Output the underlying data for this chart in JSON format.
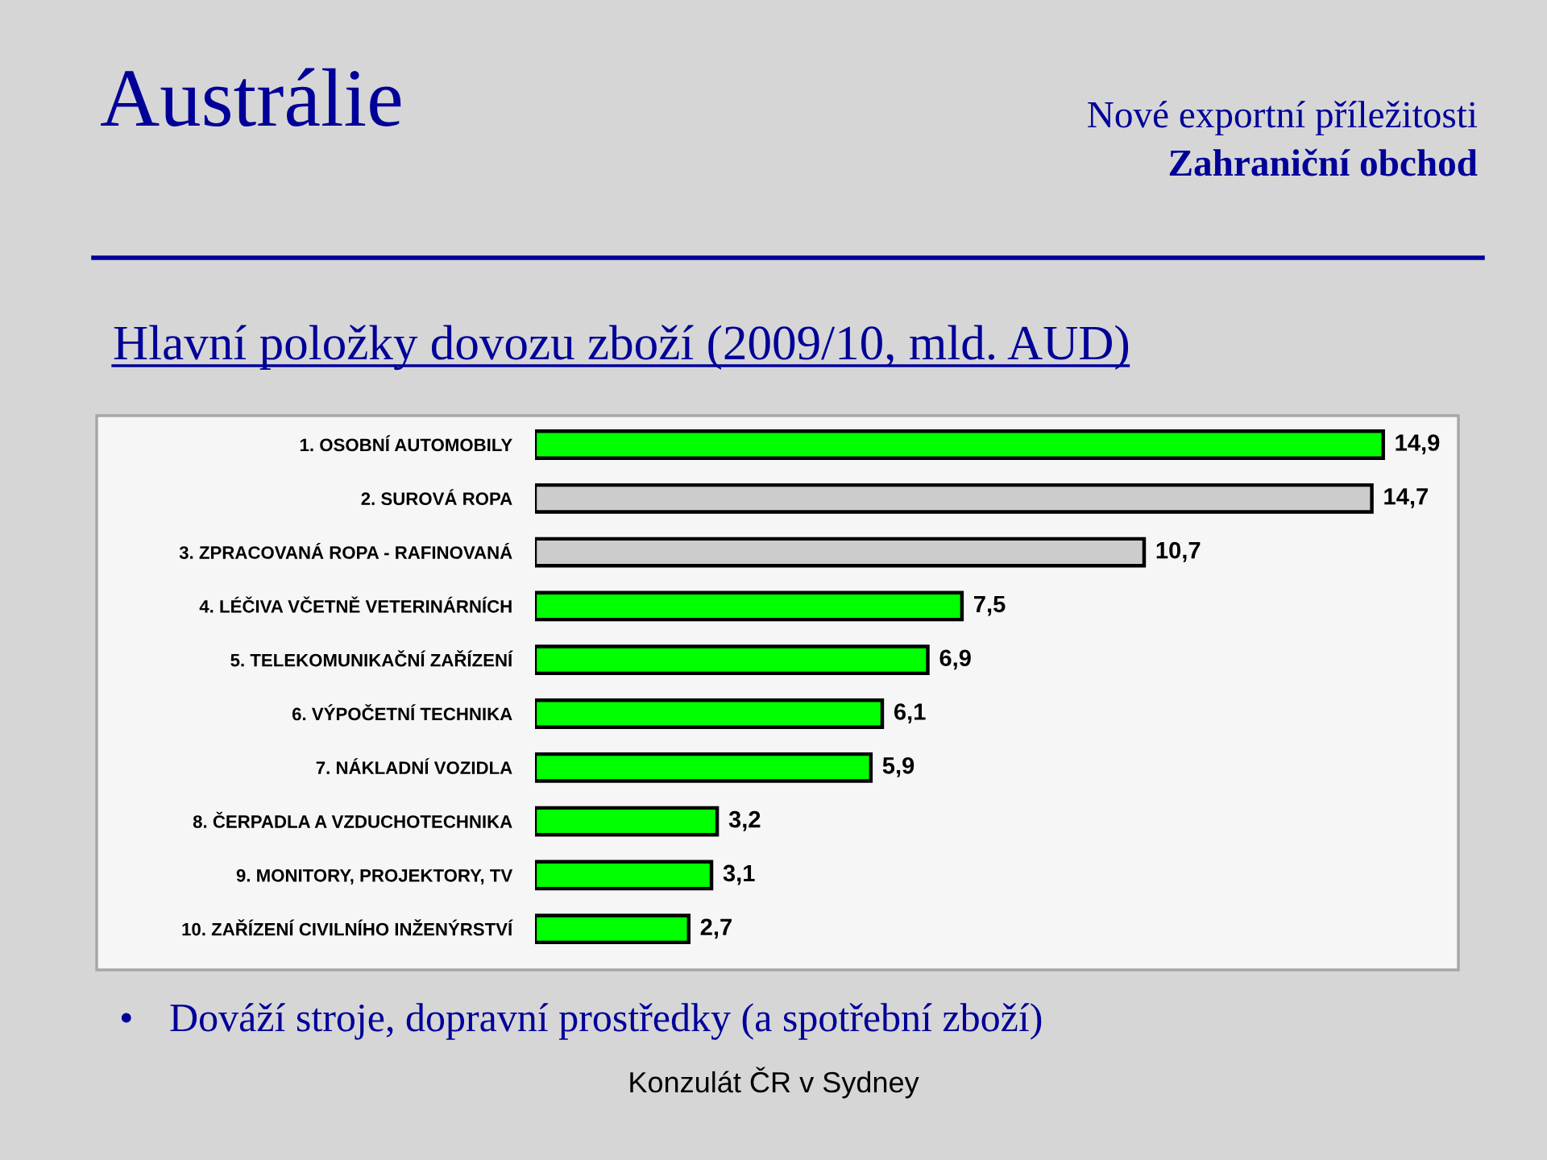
{
  "chart_data": {
    "type": "bar",
    "orientation": "horizontal",
    "title": "Hlavní položky dovozu zboží (2009/10, mld. AUD)",
    "categories": [
      "1. OSOBNÍ AUTOMOBILY",
      "2. SUROVÁ ROPA",
      "3. ZPRACOVANÁ ROPA - RAFINOVANÁ",
      "4. LÉČIVA VČETNĚ VETERINÁRNÍCH",
      "5. TELEKOMUNIKAČNÍ ZAŘÍZENÍ",
      "6. VÝPOČETNÍ TECHNIKA",
      "7. NÁKLADNÍ VOZIDLA",
      "8. ČERPADLA A VZDUCHOTECHNIKA",
      "9. MONITORY, PROJEKTORY, TV",
      "10. ZAŘÍZENÍ CIVILNÍHO INŽENÝRSTVÍ"
    ],
    "values": [
      14.9,
      14.7,
      10.7,
      7.5,
      6.9,
      6.1,
      5.9,
      3.2,
      3.1,
      2.7
    ],
    "colors": [
      "#00ff00",
      "#cccccc",
      "#cccccc",
      "#00ff00",
      "#00ff00",
      "#00ff00",
      "#00ff00",
      "#00ff00",
      "#00ff00",
      "#00ff00"
    ],
    "value_labels": [
      "14,9",
      "14,7",
      "10,7",
      "7,5",
      "6,9",
      "6,1",
      "5,9",
      "3,2",
      "3,1",
      "2,7"
    ],
    "annotations": [
      "Austrálie",
      "Nové exportní příležitosti",
      "Zahraniční obchod",
      "•",
      "Dováží stroje, dopravní prostředky (a spotřební zboží)",
      "Konzulát ČR v Sydney"
    ]
  }
}
